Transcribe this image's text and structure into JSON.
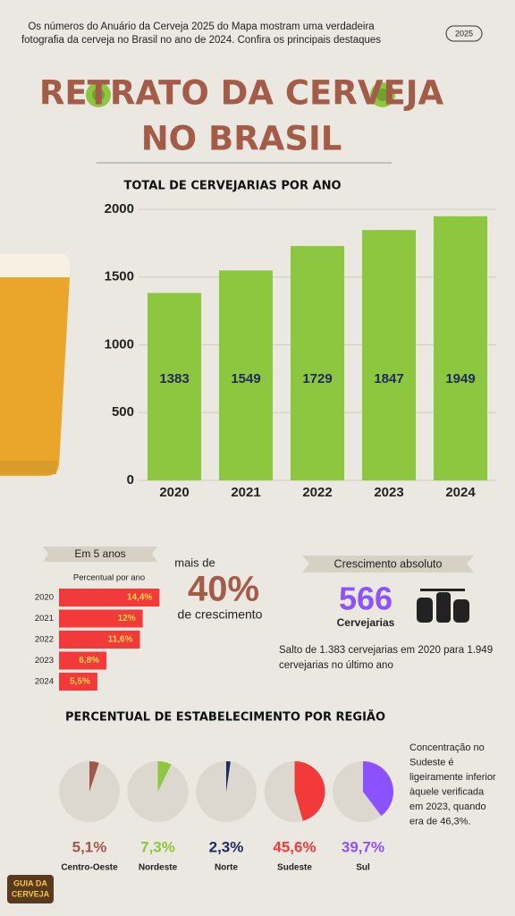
{
  "header": {
    "intro_line1": "Os números do Anuário da Cerveja 2025 do Mapa mostram uma verdadeira",
    "intro_line2": "fotografia da cerveja no Brasil no ano de 2024. Confira os principais destaques",
    "badge": "2025",
    "title_line1": "RETRATO DA CERVEJA",
    "title_line2": "NO BRASIL"
  },
  "highlights": {
    "ribbon": "Em 5 anos",
    "growth_prefix": "mais de",
    "growth_value": "40%",
    "growth_suffix": "de crescimento",
    "absolute_title": "Crescimento absoluto",
    "absolute_value": "566",
    "absolute_unit": "Cervejarias",
    "absolute_note_line1": "Salto de 1.383 cervejarias em 2020 para 1.949",
    "absolute_note_line2": "cervejarias no último ano"
  },
  "side_note": [
    "Concentração no",
    "Sudeste é",
    "ligeiramente inferior",
    "àquele verificada",
    "em 2023, quando",
    "era de 46,3%."
  ],
  "logo": [
    "GUIA DA",
    "CERVEJA"
  ],
  "chart_data": [
    {
      "type": "bar",
      "title": "TOTAL DE CERVEJARIAS POR ANO",
      "categories": [
        "2020",
        "2021",
        "2022",
        "2023",
        "2024"
      ],
      "values": [
        1383,
        1549,
        1729,
        1847,
        1949
      ],
      "color": "#8dc63f",
      "ylim": [
        0,
        2000
      ],
      "yticks": [
        0,
        500,
        1000,
        1500,
        2000
      ],
      "grid": true
    },
    {
      "type": "hbar",
      "title": "Percentual por ano",
      "categories": [
        "2020",
        "2021",
        "2022",
        "2023",
        "2024"
      ],
      "values": [
        14.4,
        12,
        11.6,
        6.8,
        5.5
      ],
      "value_labels": [
        "14,4%",
        "12%",
        "11,6%",
        "6,8%",
        "5,5%"
      ],
      "color": "#f33a3a",
      "xlim": [
        0,
        15
      ]
    },
    {
      "type": "pie",
      "title": "PERCENTUAL DE ESTABELECIMENTO POR REGIÃO",
      "categories": [
        "Centro-Oeste",
        "Nordeste",
        "Norte",
        "Sudeste",
        "Sul"
      ],
      "values": [
        5.1,
        7.3,
        2.3,
        45.6,
        39.7
      ],
      "value_labels": [
        "5,1%",
        "7,3%",
        "2,3%",
        "45,6%",
        "39,7%"
      ],
      "colors": [
        "#a0584a",
        "#8dc63f",
        "#1f2a5c",
        "#f33a3a",
        "#8c52ff"
      ]
    }
  ]
}
